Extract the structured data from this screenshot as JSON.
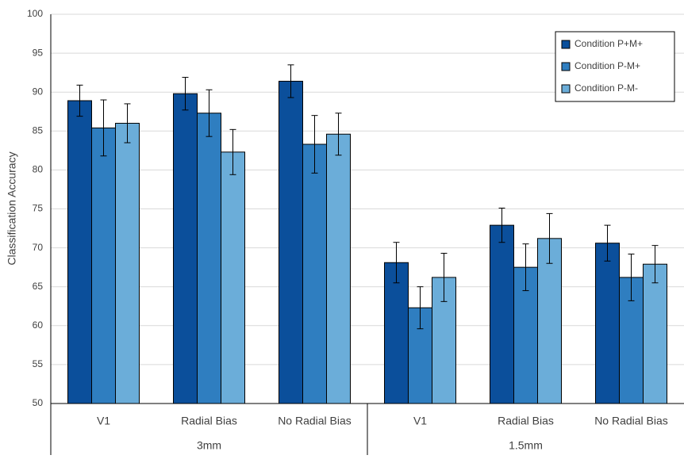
{
  "chart_data": {
    "type": "bar",
    "y_label": "Classification Accuracy",
    "groups": [
      {
        "name": "3mm",
        "categories": [
          "V1",
          "Radial Bias",
          "No Radial Bias"
        ]
      },
      {
        "name": "1.5mm",
        "categories": [
          "V1",
          "Radial Bias",
          "No Radial Bias"
        ]
      }
    ],
    "series": [
      {
        "name": "Condition P+M+",
        "color": "#0b4f9b",
        "values": [
          88.9,
          89.8,
          91.4,
          68.1,
          72.9,
          70.6
        ],
        "errors": [
          2.0,
          2.1,
          2.1,
          2.6,
          2.2,
          2.3
        ]
      },
      {
        "name": "Condition P-M+",
        "color": "#2f7ec0",
        "values": [
          85.4,
          87.3,
          83.3,
          62.3,
          67.5,
          66.2
        ],
        "errors": [
          3.6,
          3.0,
          3.7,
          2.7,
          3.0,
          3.0
        ]
      },
      {
        "name": "Condition P-M-",
        "color": "#6badd9",
        "values": [
          86.0,
          82.3,
          84.6,
          66.2,
          71.2,
          67.9
        ],
        "errors": [
          2.5,
          2.9,
          2.7,
          3.1,
          3.2,
          2.4
        ]
      }
    ],
    "ylim": [
      50,
      100
    ],
    "yticks": [
      50,
      55,
      60,
      65,
      70,
      75,
      80,
      85,
      90,
      95,
      100
    ],
    "grid": true,
    "legend": "top-right"
  }
}
